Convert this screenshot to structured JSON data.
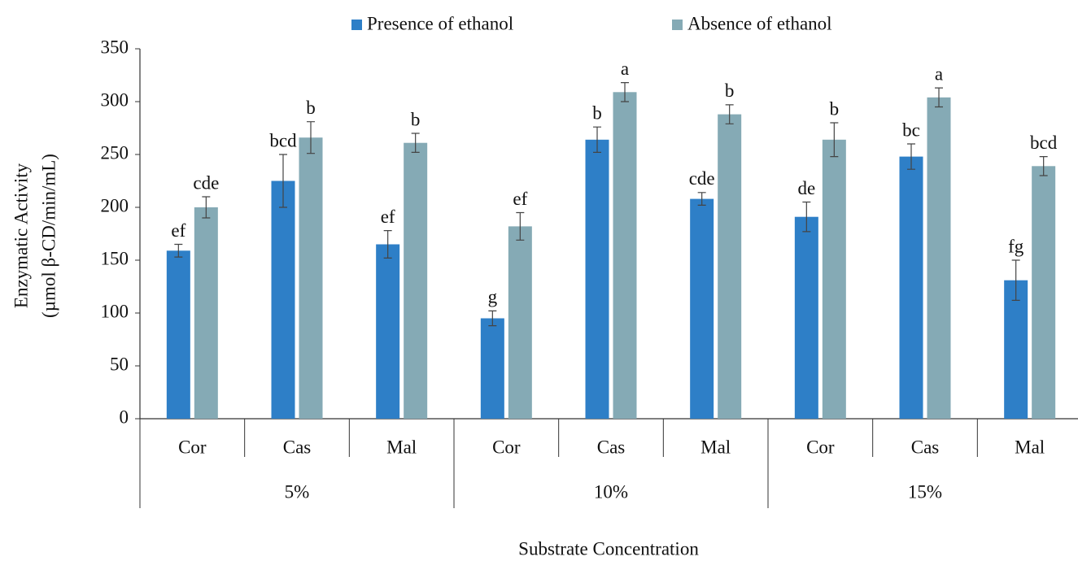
{
  "chart_data": {
    "type": "bar",
    "y_label": [
      "Enzymatic Activity",
      "(µmol β-CD/min/mL)"
    ],
    "x_label": "Substrate Concentration",
    "groups": [
      {
        "label": "5%",
        "categories": [
          "Cor",
          "Cas",
          "Mal"
        ]
      },
      {
        "label": "10%",
        "categories": [
          "Cor",
          "Cas",
          "Mal"
        ]
      },
      {
        "label": "15%",
        "categories": [
          "Cor",
          "Cas",
          "Mal"
        ]
      }
    ],
    "series": [
      {
        "name": "Presence of ethanol",
        "color": "#2e7fc7",
        "values": [
          159,
          225,
          165,
          95,
          264,
          208,
          191,
          248,
          131
        ],
        "errors": [
          6,
          25,
          13,
          7,
          12,
          6,
          14,
          12,
          19
        ],
        "letters": [
          "ef",
          "bcd",
          "ef",
          "g",
          "b",
          "cde",
          "de",
          "bc",
          "fg"
        ]
      },
      {
        "name": "Absence of ethanol",
        "color": "#85aab5",
        "values": [
          200,
          266,
          261,
          182,
          309,
          288,
          264,
          304,
          239
        ],
        "errors": [
          10,
          15,
          9,
          13,
          9,
          9,
          16,
          9,
          9
        ],
        "letters": [
          "cde",
          "b",
          "b",
          "ef",
          "a",
          "b",
          "b",
          "a",
          "bcd"
        ]
      }
    ],
    "ylim": [
      0,
      350
    ],
    "yticks": [
      0,
      50,
      100,
      150,
      200,
      250,
      300,
      350
    ],
    "legend": "top"
  }
}
